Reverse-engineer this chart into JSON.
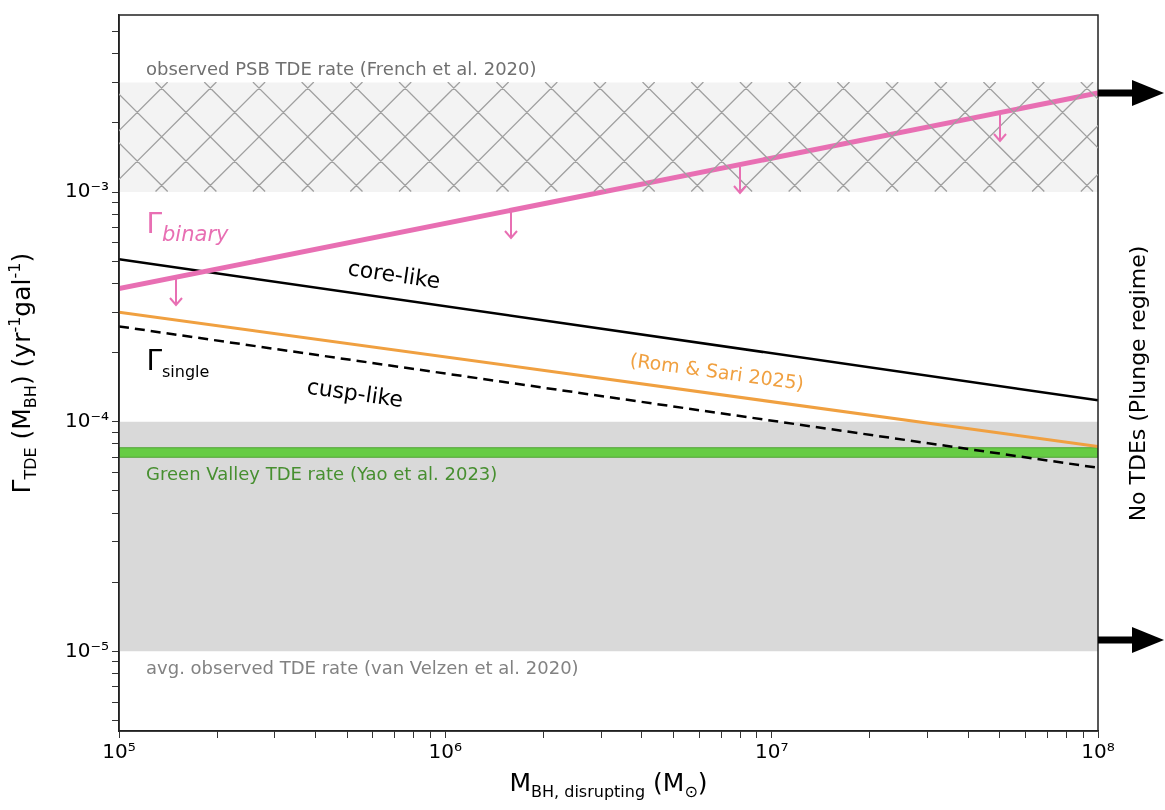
{
  "chart_data": {
    "type": "line",
    "xlabel": "M$_{BH, disrupting}$ (M$_{⊙}$)",
    "ylabel": "Γ$_{TDE}$ (M$_{BH}$) (yr$^{-1}$gal$^{-1}$)",
    "log": "xy",
    "grid": false,
    "legend": false,
    "marker": "none",
    "xlim": [
      100000,
      100000000
    ],
    "xticks": [
      {
        "value": 100000,
        "label": "10⁵"
      },
      {
        "value": 200000,
        "label": null
      },
      {
        "value": 300000,
        "label": null
      },
      {
        "value": 400000,
        "label": null
      },
      {
        "value": 500000,
        "label": null
      },
      {
        "value": 600000,
        "label": null
      },
      {
        "value": 700000,
        "label": null
      },
      {
        "value": 800000,
        "label": null
      },
      {
        "value": 900000,
        "label": null
      },
      {
        "value": 1000000,
        "label": "10⁶"
      },
      {
        "value": 2000000,
        "label": null
      },
      {
        "value": 3000000,
        "label": null
      },
      {
        "value": 4000000,
        "label": null
      },
      {
        "value": 5000000,
        "label": null
      },
      {
        "value": 6000000,
        "label": null
      },
      {
        "value": 7000000,
        "label": null
      },
      {
        "value": 8000000,
        "label": null
      },
      {
        "value": 9000000,
        "label": null
      },
      {
        "value": 10000000,
        "label": "10⁷"
      },
      {
        "value": 20000000,
        "label": null
      },
      {
        "value": 30000000,
        "label": null
      },
      {
        "value": 40000000,
        "label": null
      },
      {
        "value": 50000000,
        "label": null
      },
      {
        "value": 60000000,
        "label": null
      },
      {
        "value": 70000000,
        "label": null
      },
      {
        "value": 80000000,
        "label": null
      },
      {
        "value": 90000000,
        "label": null
      },
      {
        "value": 100000000,
        "label": "10⁸"
      }
    ],
    "ylim": [
      4.5e-06,
      0.0059
    ],
    "yticks": [
      {
        "value": 5e-06,
        "label": null
      },
      {
        "value": 6e-06,
        "label": null
      },
      {
        "value": 7e-06,
        "label": null
      },
      {
        "value": 8e-06,
        "label": null
      },
      {
        "value": 9e-06,
        "label": null
      },
      {
        "value": 1e-05,
        "label": "10⁻⁵"
      },
      {
        "value": 2e-05,
        "label": null
      },
      {
        "value": 3e-05,
        "label": null
      },
      {
        "value": 4e-05,
        "label": null
      },
      {
        "value": 5e-05,
        "label": null
      },
      {
        "value": 6e-05,
        "label": null
      },
      {
        "value": 7e-05,
        "label": null
      },
      {
        "value": 8e-05,
        "label": null
      },
      {
        "value": 9e-05,
        "label": null
      },
      {
        "value": 0.0001,
        "label": "10⁻⁴"
      },
      {
        "value": 0.0002,
        "label": null
      },
      {
        "value": 0.0003,
        "label": null
      },
      {
        "value": 0.0004,
        "label": null
      },
      {
        "value": 0.0005,
        "label": null
      },
      {
        "value": 0.0006,
        "label": null
      },
      {
        "value": 0.0007,
        "label": null
      },
      {
        "value": 0.0008,
        "label": null
      },
      {
        "value": 0.0009,
        "label": null
      },
      {
        "value": 0.001,
        "label": "10⁻³"
      },
      {
        "value": 0.002,
        "label": null
      },
      {
        "value": 0.003,
        "label": null
      },
      {
        "value": 0.004,
        "label": null
      },
      {
        "value": 0.005,
        "label": null
      }
    ],
    "x": [
      100000,
      100000000
    ],
    "series": [
      {
        "name": "Γ$_{binary}$",
        "color": "#e86fb3",
        "values": [
          0.00038,
          0.0027
        ]
      },
      {
        "name": "core-like",
        "color": "#000000",
        "values": [
          0.00051,
          0.000124
        ]
      },
      {
        "name": "cusp-like",
        "color": "#000000",
        "line_style": "dashed",
        "values": [
          0.00026,
          6.3e-05
        ]
      },
      {
        "name": "(Rom & Sari 2025)",
        "color": "#f0a040",
        "values": [
          0.0003,
          7.8e-05
        ]
      }
    ],
    "bands": [
      {
        "axis": "y",
        "from": 0.001,
        "to": 0.003,
        "label": "observed PSB TDE rate (French et al. 2020)",
        "color": "#a0a0a0"
      },
      {
        "axis": "y",
        "from": 1e-05,
        "to": 0.0001,
        "label": "avg. observed TDE rate (van Velzen et al. 2020)",
        "color": "#d9d9d9"
      },
      {
        "axis": "y",
        "from": 7e-05,
        "to": 7.7e-05,
        "label": "Green Valley TDE rate (Yao et al. 2023)",
        "color": "#66cc44"
      }
    ],
    "annotations": [
      "Γ$_{single}$",
      "No TDEs (Plunge regime)"
    ]
  }
}
